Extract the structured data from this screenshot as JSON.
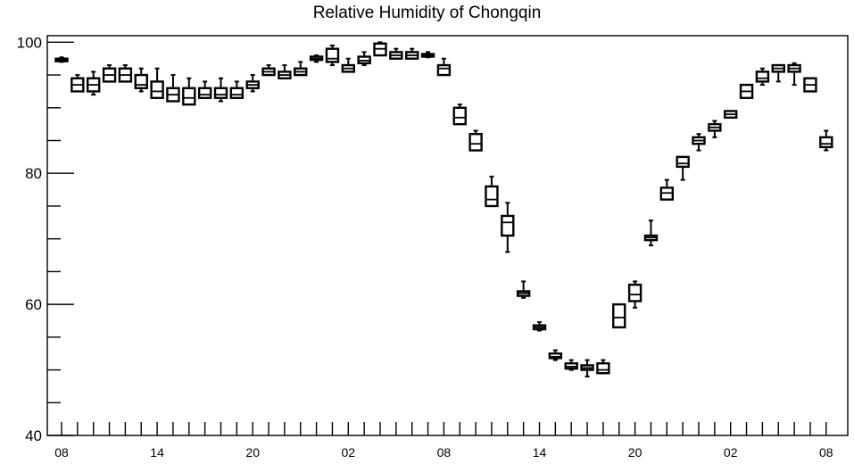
{
  "chart_data": {
    "type": "box",
    "title": "Relative Humidity of Chongqin",
    "xlabel": "",
    "ylabel": "",
    "ylim": [
      40,
      101
    ],
    "y_ticks": [
      40,
      60,
      80,
      100
    ],
    "x_tick_labels": [
      {
        "slot": 0,
        "label": "08"
      },
      {
        "slot": 6,
        "label": "14"
      },
      {
        "slot": 12,
        "label": "20"
      },
      {
        "slot": 18,
        "label": "02"
      },
      {
        "slot": 24,
        "label": "08"
      },
      {
        "slot": 30,
        "label": "14"
      },
      {
        "slot": 36,
        "label": "20"
      },
      {
        "slot": 42,
        "label": "02"
      },
      {
        "slot": 48,
        "label": "08"
      }
    ],
    "slots": 49,
    "boxes": [
      {
        "slot": 0,
        "min": 97.0,
        "q1": 97.1,
        "median": 97.3,
        "q3": 97.5,
        "max": 97.7
      },
      {
        "slot": 1,
        "min": 92.5,
        "q1": 92.5,
        "median": 93.5,
        "q3": 94.5,
        "max": 95.0
      },
      {
        "slot": 2,
        "min": 92.0,
        "q1": 92.5,
        "median": 93.5,
        "q3": 94.5,
        "max": 95.5
      },
      {
        "slot": 3,
        "min": 94.0,
        "q1": 94.0,
        "median": 95.0,
        "q3": 96.0,
        "max": 96.5
      },
      {
        "slot": 4,
        "min": 94.0,
        "q1": 94.0,
        "median": 95.0,
        "q3": 96.0,
        "max": 96.5
      },
      {
        "slot": 5,
        "min": 92.5,
        "q1": 93.0,
        "median": 93.5,
        "q3": 95.0,
        "max": 96.0
      },
      {
        "slot": 6,
        "min": 91.5,
        "q1": 91.5,
        "median": 92.5,
        "q3": 94.0,
        "max": 96.0
      },
      {
        "slot": 7,
        "min": 91.0,
        "q1": 91.0,
        "median": 92.0,
        "q3": 93.0,
        "max": 95.0
      },
      {
        "slot": 8,
        "min": 90.5,
        "q1": 90.5,
        "median": 91.5,
        "q3": 93.0,
        "max": 94.5
      },
      {
        "slot": 9,
        "min": 91.5,
        "q1": 91.5,
        "median": 92.0,
        "q3": 93.0,
        "max": 94.0
      },
      {
        "slot": 10,
        "min": 91.0,
        "q1": 91.5,
        "median": 92.0,
        "q3": 93.0,
        "max": 94.5
      },
      {
        "slot": 11,
        "min": 91.5,
        "q1": 91.5,
        "median": 92.0,
        "q3": 93.0,
        "max": 94.0
      },
      {
        "slot": 12,
        "min": 92.5,
        "q1": 93.0,
        "median": 93.5,
        "q3": 94.0,
        "max": 95.0
      },
      {
        "slot": 13,
        "min": 95.0,
        "q1": 95.0,
        "median": 95.5,
        "q3": 96.0,
        "max": 96.5
      },
      {
        "slot": 14,
        "min": 94.5,
        "q1": 94.5,
        "median": 95.0,
        "q3": 95.5,
        "max": 96.5
      },
      {
        "slot": 15,
        "min": 95.0,
        "q1": 95.0,
        "median": 95.5,
        "q3": 96.0,
        "max": 97.0
      },
      {
        "slot": 16,
        "min": 97.0,
        "q1": 97.3,
        "median": 97.5,
        "q3": 97.8,
        "max": 98.0
      },
      {
        "slot": 17,
        "min": 96.5,
        "q1": 97.0,
        "median": 97.5,
        "q3": 99.0,
        "max": 99.5
      },
      {
        "slot": 18,
        "min": 95.5,
        "q1": 95.5,
        "median": 96.0,
        "q3": 96.5,
        "max": 97.5
      },
      {
        "slot": 19,
        "min": 96.5,
        "q1": 96.8,
        "median": 97.2,
        "q3": 97.8,
        "max": 98.5
      },
      {
        "slot": 20,
        "min": 98.0,
        "q1": 98.0,
        "median": 99.0,
        "q3": 99.8,
        "max": 100.0
      },
      {
        "slot": 21,
        "min": 97.5,
        "q1": 97.5,
        "median": 98.0,
        "q3": 98.5,
        "max": 99.0
      },
      {
        "slot": 22,
        "min": 97.5,
        "q1": 97.5,
        "median": 98.0,
        "q3": 98.5,
        "max": 99.0
      },
      {
        "slot": 23,
        "min": 97.7,
        "q1": 97.8,
        "median": 98.0,
        "q3": 98.2,
        "max": 98.5
      },
      {
        "slot": 24,
        "min": 95.0,
        "q1": 95.0,
        "median": 96.0,
        "q3": 96.5,
        "max": 97.5
      },
      {
        "slot": 25,
        "min": 87.5,
        "q1": 87.5,
        "median": 88.5,
        "q3": 90.0,
        "max": 90.5
      },
      {
        "slot": 26,
        "min": 83.5,
        "q1": 83.5,
        "median": 84.5,
        "q3": 86.0,
        "max": 86.5
      },
      {
        "slot": 27,
        "min": 75.0,
        "q1": 75.0,
        "median": 76.0,
        "q3": 78.0,
        "max": 79.5
      },
      {
        "slot": 28,
        "min": 68.0,
        "q1": 70.5,
        "median": 72.5,
        "q3": 73.5,
        "max": 75.5
      },
      {
        "slot": 29,
        "min": 61.0,
        "q1": 61.3,
        "median": 61.7,
        "q3": 62.0,
        "max": 63.5
      },
      {
        "slot": 30,
        "min": 56.0,
        "q1": 56.2,
        "median": 56.5,
        "q3": 56.8,
        "max": 57.3
      },
      {
        "slot": 31,
        "min": 51.5,
        "q1": 51.8,
        "median": 52.0,
        "q3": 52.5,
        "max": 53.0
      },
      {
        "slot": 32,
        "min": 50.0,
        "q1": 50.2,
        "median": 50.5,
        "q3": 51.0,
        "max": 51.5
      },
      {
        "slot": 33,
        "min": 49.0,
        "q1": 50.0,
        "median": 50.3,
        "q3": 50.7,
        "max": 51.5
      },
      {
        "slot": 34,
        "min": 49.5,
        "q1": 49.5,
        "median": 50.0,
        "q3": 51.0,
        "max": 51.5
      },
      {
        "slot": 35,
        "min": 56.5,
        "q1": 56.5,
        "median": 58.0,
        "q3": 60.0,
        "max": 60.0
      },
      {
        "slot": 36,
        "min": 59.5,
        "q1": 60.5,
        "median": 61.5,
        "q3": 63.0,
        "max": 63.5
      },
      {
        "slot": 37,
        "min": 69.0,
        "q1": 69.8,
        "median": 70.2,
        "q3": 70.5,
        "max": 72.8
      },
      {
        "slot": 38,
        "min": 76.0,
        "q1": 76.0,
        "median": 77.0,
        "q3": 77.8,
        "max": 79.0
      },
      {
        "slot": 39,
        "min": 79.0,
        "q1": 81.0,
        "median": 81.5,
        "q3": 82.5,
        "max": 82.5
      },
      {
        "slot": 40,
        "min": 83.5,
        "q1": 84.5,
        "median": 85.0,
        "q3": 85.5,
        "max": 86.0
      },
      {
        "slot": 41,
        "min": 85.5,
        "q1": 86.5,
        "median": 87.0,
        "q3": 87.5,
        "max": 88.0
      },
      {
        "slot": 42,
        "min": 88.5,
        "q1": 88.5,
        "median": 89.0,
        "q3": 89.5,
        "max": 89.5
      },
      {
        "slot": 43,
        "min": 91.5,
        "q1": 91.5,
        "median": 92.5,
        "q3": 93.5,
        "max": 93.5
      },
      {
        "slot": 44,
        "min": 93.5,
        "q1": 94.0,
        "median": 94.5,
        "q3": 95.5,
        "max": 96.0
      },
      {
        "slot": 45,
        "min": 94.0,
        "q1": 95.5,
        "median": 96.0,
        "q3": 96.5,
        "max": 96.5
      },
      {
        "slot": 46,
        "min": 93.5,
        "q1": 95.5,
        "median": 96.0,
        "q3": 96.5,
        "max": 96.8
      },
      {
        "slot": 47,
        "min": 92.5,
        "q1": 92.5,
        "median": 93.5,
        "q3": 94.5,
        "max": 94.5
      },
      {
        "slot": 48,
        "min": 83.5,
        "q1": 84.0,
        "median": 84.5,
        "q3": 85.5,
        "max": 86.5
      }
    ],
    "grid": false,
    "legend": "none",
    "colors": {
      "box": "#000000",
      "background": "#ffffff"
    }
  }
}
